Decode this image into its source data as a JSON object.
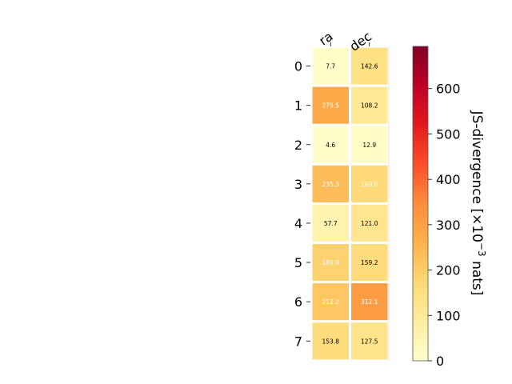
{
  "chart_data": {
    "type": "heatmap",
    "title": "",
    "columns": [
      "ra",
      "dec"
    ],
    "rows": [
      "0",
      "1",
      "2",
      "3",
      "4",
      "5",
      "6",
      "7"
    ],
    "values": [
      [
        7.7,
        142.6
      ],
      [
        279.5,
        108.2
      ],
      [
        4.6,
        12.9
      ],
      [
        235.3,
        169.0
      ],
      [
        57.7,
        121.0
      ],
      [
        189.9,
        159.2
      ],
      [
        212.2,
        312.1
      ],
      [
        153.8,
        127.5
      ]
    ],
    "cell_labels": [
      [
        "7.7",
        "142.6"
      ],
      [
        "279.5",
        "108.2"
      ],
      [
        "4.6",
        "12.9"
      ],
      [
        "235.3",
        "169.0"
      ],
      [
        "57.7",
        "121.0"
      ],
      [
        "189.9",
        "159.2"
      ],
      [
        "212.2",
        "312.1"
      ],
      [
        "153.8",
        "127.5"
      ]
    ],
    "colorbar": {
      "label_main": "JS-divergence [×10",
      "label_exp": "−3",
      "label_tail": " nats]",
      "range": [
        0,
        693
      ],
      "ticks": [
        0,
        100,
        200,
        300,
        400,
        500,
        600
      ],
      "tick_labels": [
        "0",
        "100",
        "200",
        "300",
        "400",
        "500",
        "600"
      ],
      "colormap": "YlOrRd"
    }
  }
}
